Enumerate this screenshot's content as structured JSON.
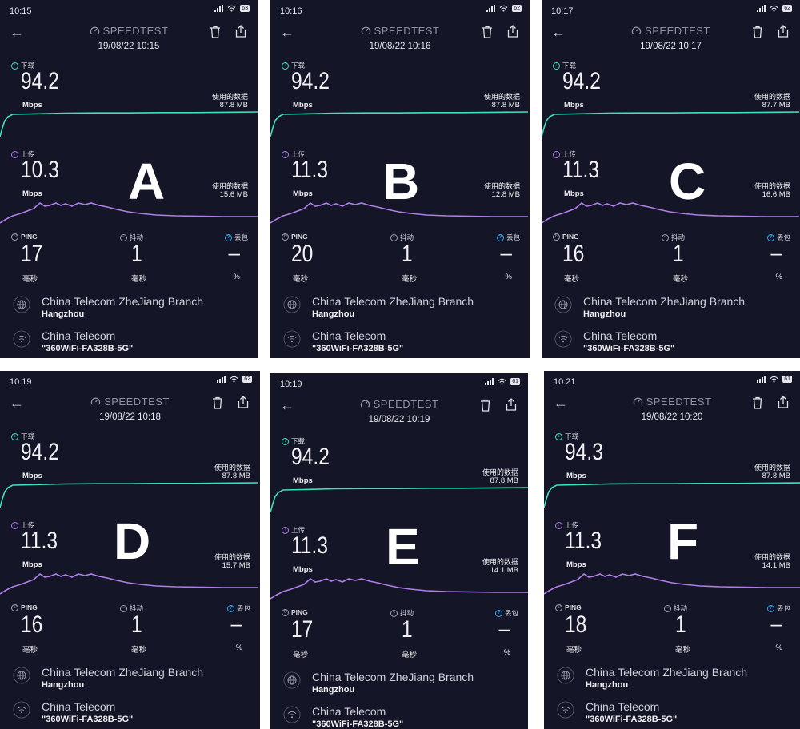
{
  "labels": {
    "brand": "SPEEDTEST",
    "download": "下载",
    "upload": "上传",
    "ping": "PING",
    "jitter": "抖动",
    "loss": "丢包",
    "mbps": "Mbps",
    "used_data": "使用的数据",
    "ms": "毫秒",
    "percent": "%"
  },
  "icons": {
    "back": "back-arrow-icon",
    "brand": "speedtest-gauge-icon",
    "trash": "trash-icon",
    "share": "share-icon",
    "server": "globe-icon",
    "network": "wifi-icon"
  },
  "colors": {
    "background": "#141526",
    "download_line": "#3fe0c0",
    "upload_line": "#b07ee8",
    "packet_loss_icon": "#2ea6f3"
  },
  "panels": [
    {
      "letter": "A",
      "status_time": "10:15",
      "battery": "63",
      "date": "19/08/22 10:15",
      "download": "94.2",
      "download_data": "87.8 MB",
      "upload": "10.3",
      "upload_data": "15.6 MB",
      "ping": "17",
      "jitter": "1",
      "loss": "–",
      "server": "China Telecom ZheJiang Branch",
      "city": "Hangzhou",
      "isp": "China Telecom",
      "ssid": "\"360WiFi-FA328B-5G\""
    },
    {
      "letter": "B",
      "status_time": "10:16",
      "battery": "62",
      "date": "19/08/22 10:16",
      "download": "94.2",
      "download_data": "87.8 MB",
      "upload": "11.3",
      "upload_data": "12.8 MB",
      "ping": "20",
      "jitter": "1",
      "loss": "–",
      "server": "China Telecom ZheJiang Branch",
      "city": "Hangzhou",
      "isp": "China Telecom",
      "ssid": "\"360WiFi-FA328B-5G\""
    },
    {
      "letter": "C",
      "status_time": "10:17",
      "battery": "62",
      "date": "19/08/22 10:17",
      "download": "94.2",
      "download_data": "87.7 MB",
      "upload": "11.3",
      "upload_data": "16.6 MB",
      "ping": "16",
      "jitter": "1",
      "loss": "–",
      "server": "China Telecom ZheJiang Branch",
      "city": "Hangzhou",
      "isp": "China Telecom",
      "ssid": "\"360WiFi-FA328B-5G\""
    },
    {
      "letter": "D",
      "status_time": "10:19",
      "battery": "62",
      "date": "19/08/22 10:18",
      "download": "94.2",
      "download_data": "87.8 MB",
      "upload": "11.3",
      "upload_data": "15.7 MB",
      "ping": "16",
      "jitter": "1",
      "loss": "–",
      "server": "China Telecom ZheJiang Branch",
      "city": "Hangzhou",
      "isp": "China Telecom",
      "ssid": "\"360WiFi-FA328B-5G\""
    },
    {
      "letter": "E",
      "status_time": "10:19",
      "battery": "61",
      "date": "19/08/22 10:19",
      "download": "94.2",
      "download_data": "87.8 MB",
      "upload": "11.3",
      "upload_data": "14.1 MB",
      "ping": "17",
      "jitter": "1",
      "loss": "–",
      "server": "China Telecom ZheJiang Branch",
      "city": "Hangzhou",
      "isp": "China Telecom",
      "ssid": "\"360WiFi-FA328B-5G\""
    },
    {
      "letter": "F",
      "status_time": "10:21",
      "battery": "61",
      "date": "19/08/22 10:20",
      "download": "94.3",
      "download_data": "87.8 MB",
      "upload": "11.3",
      "upload_data": "14.1 MB",
      "ping": "18",
      "jitter": "1",
      "loss": "–",
      "server": "China Telecom ZheJiang Branch",
      "city": "Hangzhou",
      "isp": "China Telecom",
      "ssid": "\"360WiFi-FA328B-5G\""
    }
  ]
}
